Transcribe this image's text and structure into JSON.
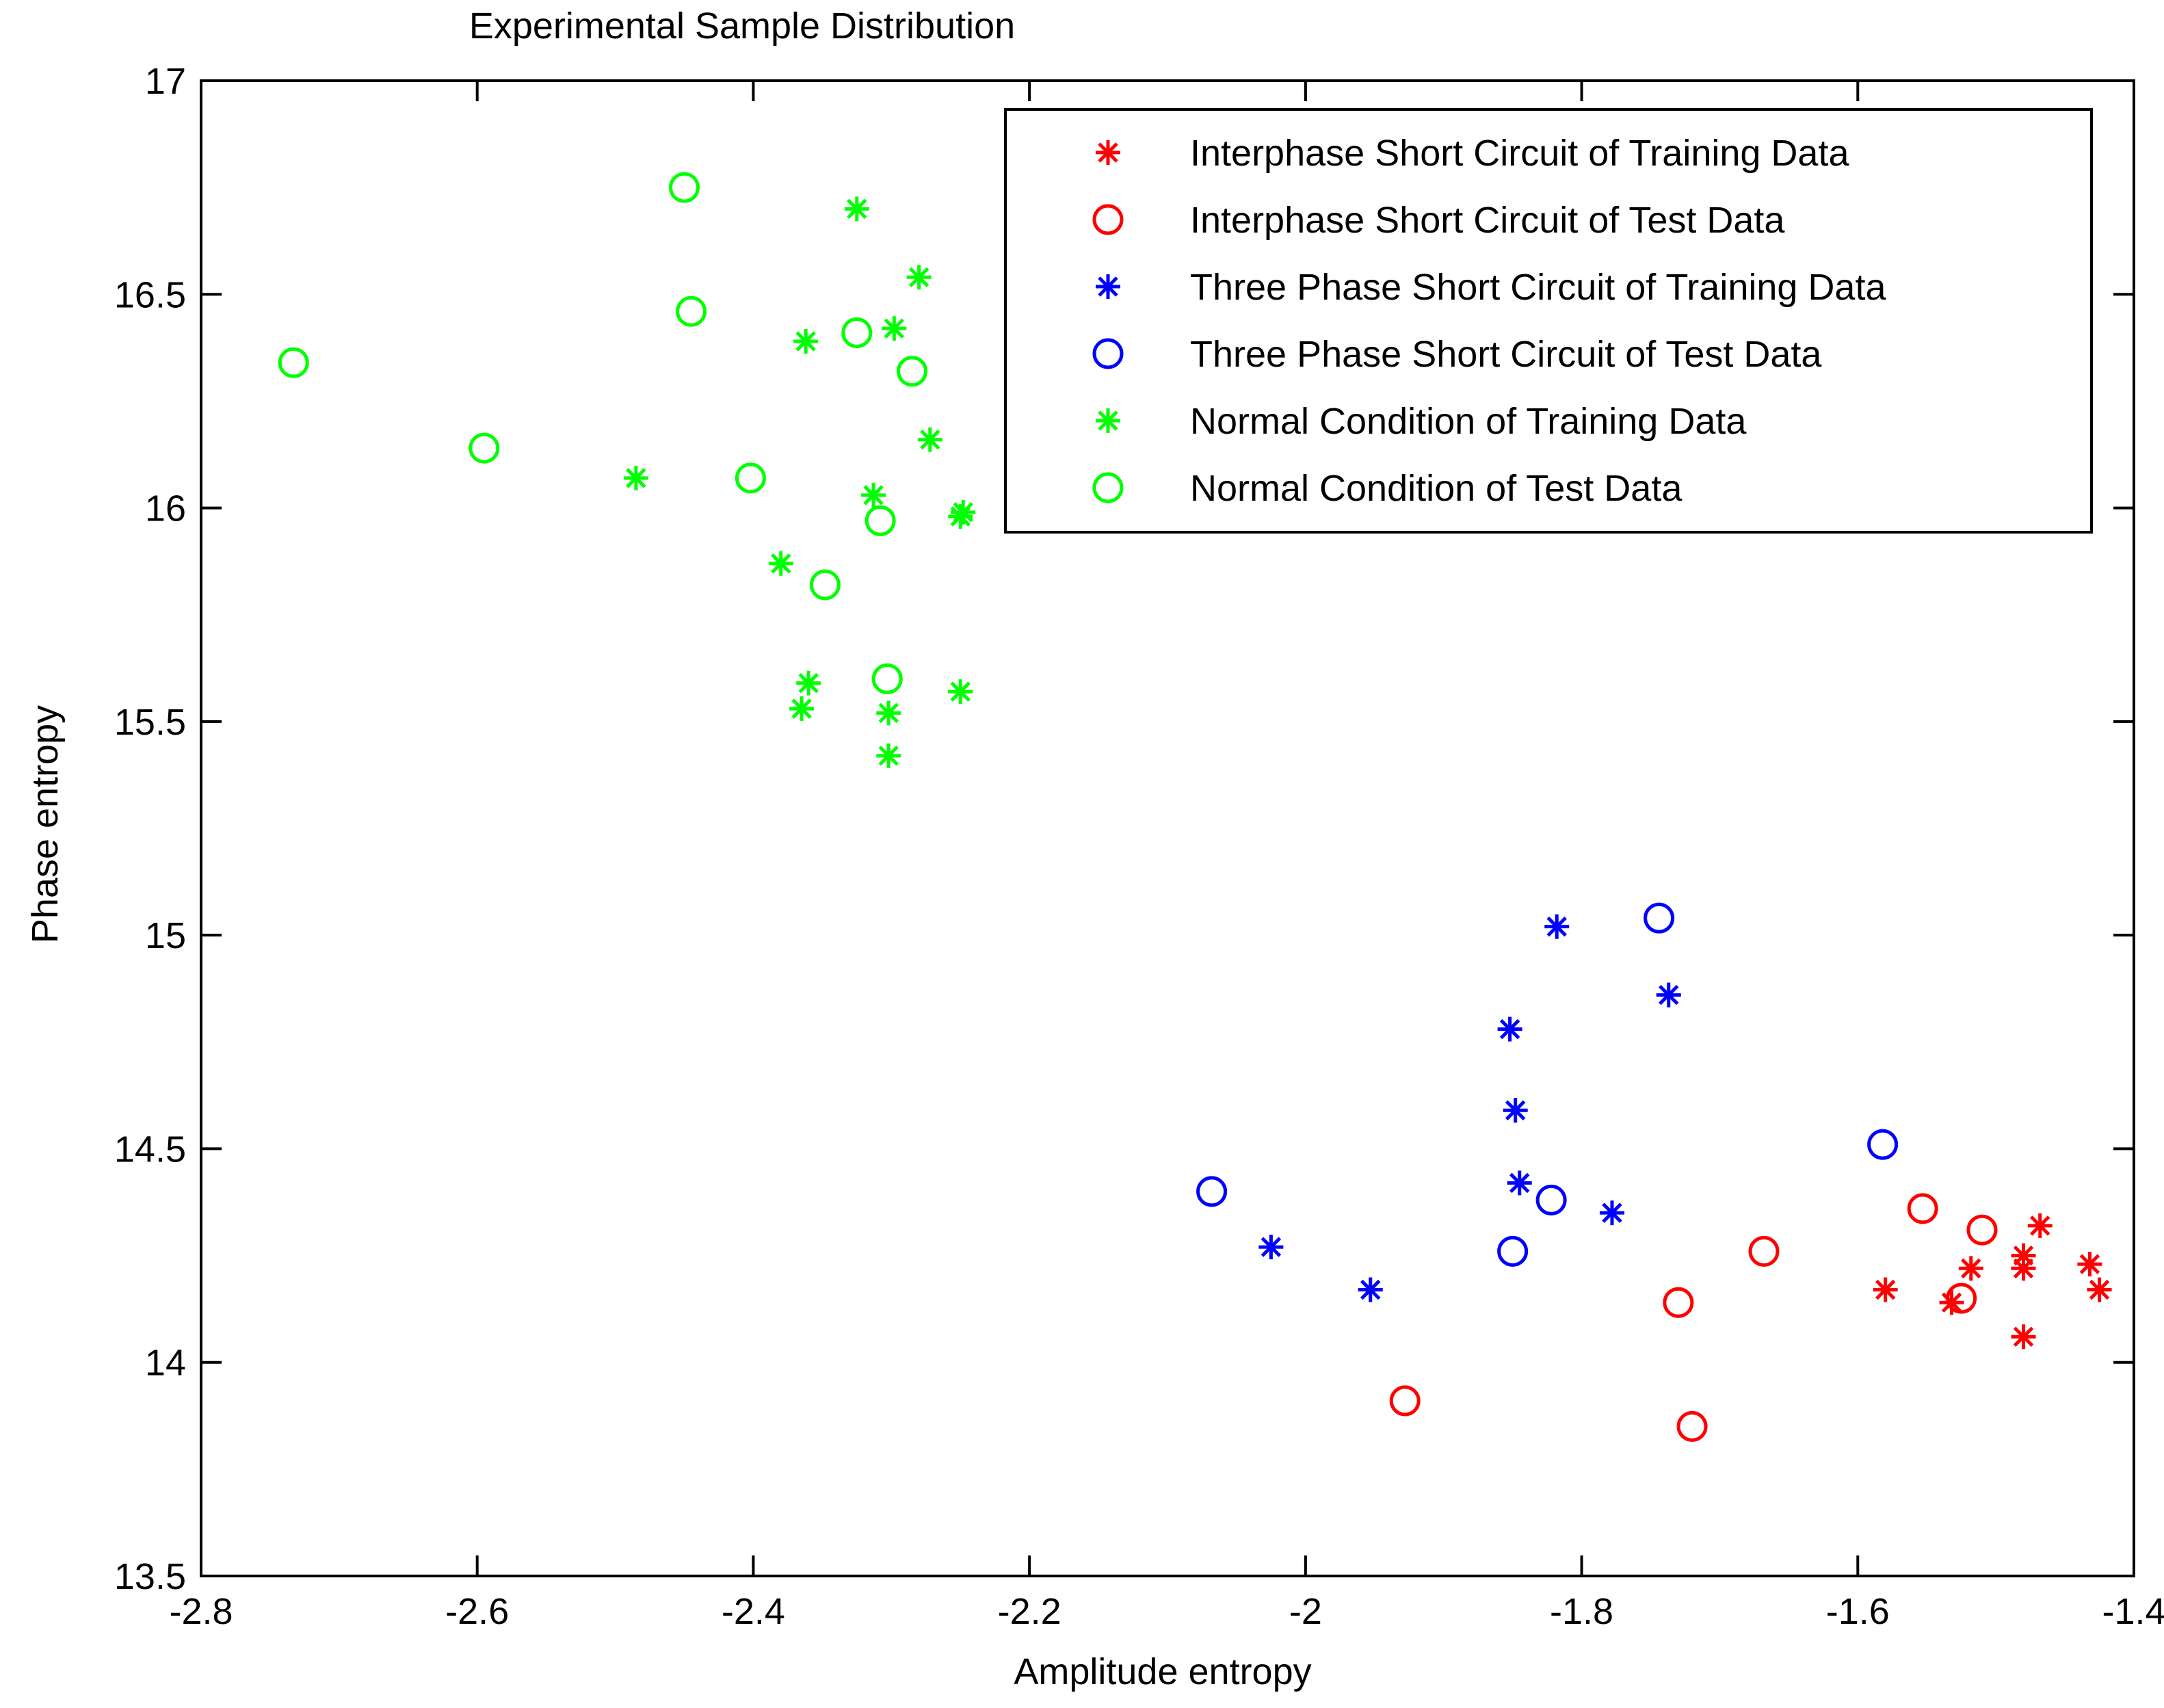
{
  "chart_data": {
    "type": "scatter",
    "title": "Experimental Sample Distribution",
    "xlabel": "Amplitude entropy",
    "ylabel": "Phase entropy",
    "xlim": [
      -2.8,
      -1.4
    ],
    "ylim": [
      13.5,
      17
    ],
    "xticks": [
      -2.8,
      -2.6,
      -2.4,
      -2.2,
      -2,
      -1.8,
      -1.6,
      -1.4
    ],
    "xtick_labels": [
      "-2.8",
      "-2.6",
      "-2.4",
      "-2.2",
      "-2",
      "-1.8",
      "-1.6",
      "-1.4"
    ],
    "yticks": [
      13.5,
      14,
      14.5,
      15,
      15.5,
      16,
      16.5,
      17
    ],
    "ytick_labels": [
      "13.5",
      "14",
      "14.5",
      "15",
      "15.5",
      "16",
      "16.5",
      "17"
    ],
    "grid": false,
    "legend_position": "top-right",
    "series": [
      {
        "name": "Interphase Short Circuit of Training Data",
        "marker": "star",
        "color": "#ff0000",
        "points": [
          [
            -1.58,
            14.17
          ],
          [
            -1.532,
            14.14
          ],
          [
            -1.518,
            14.22
          ],
          [
            -1.48,
            14.25
          ],
          [
            -1.48,
            14.22
          ],
          [
            -1.468,
            14.32
          ],
          [
            -1.48,
            14.06
          ],
          [
            -1.432,
            14.23
          ],
          [
            -1.425,
            14.17
          ]
        ]
      },
      {
        "name": "Interphase Short Circuit of Test Data",
        "marker": "circle",
        "color": "#ff0000",
        "points": [
          [
            -1.928,
            13.91
          ],
          [
            -1.73,
            14.14
          ],
          [
            -1.72,
            13.85
          ],
          [
            -1.668,
            14.26
          ],
          [
            -1.553,
            14.36
          ],
          [
            -1.51,
            14.31
          ],
          [
            -1.525,
            14.15
          ]
        ]
      },
      {
        "name": "Three Phase Short Circuit of Training Data",
        "marker": "star",
        "color": "#0000ff",
        "points": [
          [
            -2.025,
            14.27
          ],
          [
            -1.953,
            14.17
          ],
          [
            -1.852,
            14.78
          ],
          [
            -1.848,
            14.59
          ],
          [
            -1.845,
            14.42
          ],
          [
            -1.818,
            15.02
          ],
          [
            -1.778,
            14.35
          ],
          [
            -1.737,
            14.86
          ]
        ]
      },
      {
        "name": "Three Phase Short Circuit of Test Data",
        "marker": "circle",
        "color": "#0000ff",
        "points": [
          [
            -2.068,
            14.4
          ],
          [
            -1.85,
            14.26
          ],
          [
            -1.822,
            14.38
          ],
          [
            -1.744,
            15.04
          ],
          [
            -1.582,
            14.51
          ]
        ]
      },
      {
        "name": "Normal Condition of Training Data",
        "marker": "star",
        "color": "#00ff00",
        "points": [
          [
            -2.325,
            16.7
          ],
          [
            -2.28,
            16.54
          ],
          [
            -2.298,
            16.42
          ],
          [
            -2.362,
            16.39
          ],
          [
            -2.272,
            16.16
          ],
          [
            -2.485,
            16.07
          ],
          [
            -2.313,
            16.03
          ],
          [
            -2.248,
            15.99
          ],
          [
            -2.25,
            15.98
          ],
          [
            -2.38,
            15.87
          ],
          [
            -2.36,
            15.59
          ],
          [
            -2.365,
            15.53
          ],
          [
            -2.302,
            15.52
          ],
          [
            -2.25,
            15.57
          ],
          [
            -2.302,
            15.42
          ]
        ]
      },
      {
        "name": "Normal Condition of Test Data",
        "marker": "circle",
        "color": "#00ff00",
        "points": [
          [
            -2.45,
            16.75
          ],
          [
            -2.445,
            16.46
          ],
          [
            -2.733,
            16.34
          ],
          [
            -2.325,
            16.41
          ],
          [
            -2.285,
            16.32
          ],
          [
            -2.595,
            16.14
          ],
          [
            -2.402,
            16.07
          ],
          [
            -2.308,
            15.97
          ],
          [
            -2.348,
            15.82
          ],
          [
            -2.303,
            15.6
          ]
        ]
      }
    ]
  }
}
